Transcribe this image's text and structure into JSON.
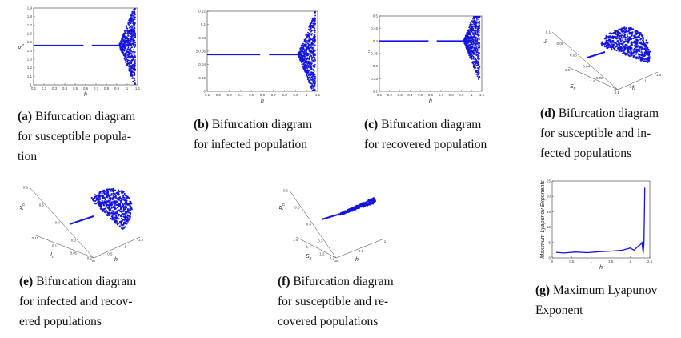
{
  "figure": {
    "panels": [
      {
        "tag": "(a)",
        "lines": [
          "Bifurcation diagram",
          "for susceptible popula-",
          "tion"
        ]
      },
      {
        "tag": "(b)",
        "lines": [
          "Bifurcation diagram",
          "for infected population"
        ]
      },
      {
        "tag": "(c)",
        "lines": [
          "Bifurcation diagram",
          "for recovered population"
        ]
      },
      {
        "tag": "(d)",
        "lines": [
          "Bifurcation diagram",
          "for susceptible and in-",
          "fected populations"
        ]
      },
      {
        "tag": "(e)",
        "lines": [
          "Bifurcation diagram",
          "for infected and recov-",
          "ered populations"
        ]
      },
      {
        "tag": "(f)",
        "lines": [
          "Bifurcation diagram",
          "for susceptible and re-",
          "covered populations"
        ]
      },
      {
        "tag": "(g)",
        "lines": [
          "Maximum Lyapunov",
          "Exponent"
        ]
      }
    ]
  },
  "colors": {
    "plot_blue": "#1414e0",
    "axis": "#333333"
  },
  "chart_data": [
    {
      "id": "a",
      "type": "scatter",
      "xlabel": "h",
      "ylabel": "S_n",
      "xticks": [
        "0.1",
        "0.2",
        "0.3",
        "0.4",
        "0.5",
        "0.6",
        "0.7",
        "0.8",
        "0.9",
        "1",
        "1.1"
      ],
      "yticks": [
        "1.9",
        "1.8",
        "1.7",
        "1.6",
        "1.5",
        "1.4",
        "1.3",
        "1.2",
        "1.1",
        "1"
      ],
      "xlim": [
        0.1,
        1.1
      ],
      "ylim": [
        1.0,
        1.9
      ],
      "fixed_point": 1.46,
      "onset_h": 0.92
    },
    {
      "id": "b",
      "type": "scatter",
      "xlabel": "h",
      "ylabel": "I_n",
      "xticks": [
        "0.1",
        "0.2",
        "0.3",
        "0.4",
        "0.5",
        "0.6",
        "0.7",
        "0.8",
        "0.9",
        "1",
        "1.1"
      ],
      "yticks": [
        "0.12",
        "0.1",
        "0.08",
        "0.06",
        "0.04",
        "0.02",
        "0"
      ],
      "xlim": [
        0.1,
        1.1
      ],
      "ylim": [
        0,
        0.12
      ],
      "fixed_point": 0.055,
      "onset_h": 0.92
    },
    {
      "id": "c",
      "type": "scatter",
      "xlabel": "h",
      "ylabel": "R_n",
      "xticks": [
        "0.1",
        "0.2",
        "0.3",
        "0.4",
        "0.5",
        "0.6",
        "0.7",
        "0.8",
        "0.9",
        "1",
        "1.1"
      ],
      "yticks": [
        "0.5",
        "0.45",
        "0.4",
        "0.35",
        "0.3",
        "0.25",
        "0.2"
      ],
      "xlim": [
        0.1,
        1.1
      ],
      "ylim": [
        0.2,
        0.5
      ],
      "fixed_point": 0.4,
      "onset_h": 0.92
    },
    {
      "id": "d",
      "type": "scatter",
      "xlabel": "h",
      "ylabel": "I_n",
      "zlabel": "S_n",
      "ticks_vertical": [
        "0.1",
        "0.08",
        "0.06",
        "0.04",
        "0.02",
        "0"
      ],
      "ticks_left": [
        "1.6",
        "1.4",
        "1.2"
      ],
      "ticks_right": [
        "0",
        "0.5",
        "1",
        "1.5"
      ]
    },
    {
      "id": "e",
      "type": "scatter",
      "xlabel": "h",
      "ylabel": "R_n",
      "zlabel": "I_n",
      "ticks_vertical": [
        "0.6",
        "0.5",
        "0.4",
        "0.3",
        "0.2"
      ],
      "ticks_left": [
        "0.15",
        "0.1",
        "0.05",
        "0"
      ],
      "ticks_right": [
        "0",
        "0.5",
        "1",
        "1.5"
      ]
    },
    {
      "id": "f",
      "type": "scatter",
      "xlabel": "h",
      "ylabel": "R_n",
      "zlabel": "S_n",
      "ticks_vertical": [
        "0.6",
        "0.5",
        "0.4",
        "0.3",
        "0.2"
      ],
      "ticks_left": [
        "1.6",
        "1.4",
        "1.2",
        "1"
      ],
      "ticks_right": [
        "0",
        "0.5",
        "1"
      ]
    },
    {
      "id": "g",
      "type": "line",
      "xlabel": "h",
      "ylabel": "Maximum Lyapunov Exponents",
      "xticks": [
        "0",
        "0.5",
        "1",
        "1.5",
        "2",
        "2.5"
      ],
      "yticks": [
        "25",
        "20",
        "15",
        "10",
        "5",
        "0"
      ],
      "xlim": [
        0,
        2.5
      ],
      "ylim": [
        0,
        25
      ],
      "points": [
        [
          0.1,
          1.8
        ],
        [
          0.3,
          1.6
        ],
        [
          0.6,
          1.9
        ],
        [
          0.9,
          1.7
        ],
        [
          1.2,
          2.0
        ],
        [
          1.5,
          2.2
        ],
        [
          1.8,
          2.5
        ],
        [
          2.0,
          3.2
        ],
        [
          2.1,
          2.5
        ],
        [
          2.2,
          3.8
        ],
        [
          2.25,
          4.2
        ],
        [
          2.3,
          5.0
        ],
        [
          2.33,
          1.5
        ],
        [
          2.35,
          4.8
        ],
        [
          2.37,
          22.8
        ]
      ]
    }
  ]
}
